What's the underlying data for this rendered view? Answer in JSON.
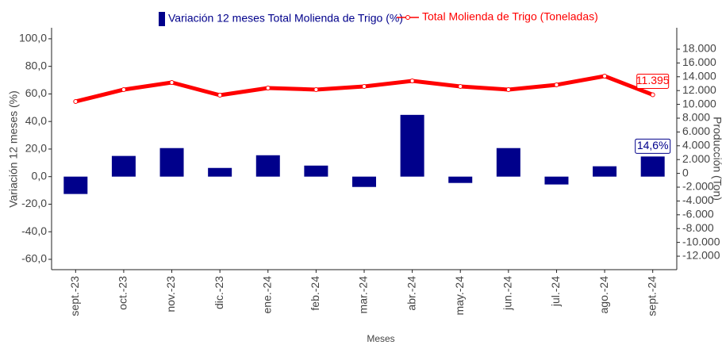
{
  "chart_data": {
    "type": "bar_line",
    "x_label": "Meses",
    "y_label": "Variación 12 meses (%)",
    "y2_label": "Producción (Ton)",
    "categories": [
      "sept.-23",
      "oct.-23",
      "nov.-23",
      "dic.-23",
      "ene.-24",
      "feb.-24",
      "mar.-24",
      "abr.-24",
      "may.-24",
      "jun.-24",
      "jul.-24",
      "ago.-24",
      "sept.-24"
    ],
    "series": [
      {
        "name": "Variación 12 meses Total Molienda de Trigo (%)",
        "type": "bar",
        "color": "#00008b",
        "values": [
          -12.6,
          15,
          20.7,
          6.3,
          15.5,
          8,
          -7.5,
          44.8,
          -4.6,
          20.7,
          -5.7,
          7.5,
          14.6
        ],
        "value_labels": [
          null,
          null,
          null,
          null,
          null,
          null,
          null,
          null,
          null,
          null,
          null,
          null,
          "14,6%"
        ]
      },
      {
        "name": "Total Molienda de Trigo (Toneladas)",
        "type": "line",
        "axis": "y2",
        "color": "#ff0000",
        "values": [
          10414,
          12140,
          13170,
          11330,
          12370,
          12140,
          12600,
          13400,
          12600,
          12140,
          12830,
          14090,
          11395
        ],
        "value_labels": [
          null,
          null,
          null,
          null,
          null,
          null,
          null,
          null,
          null,
          null,
          null,
          null,
          "11.395"
        ]
      }
    ],
    "ylim": [
      -67.5,
      108
    ],
    "yticks": [
      {
        "value": -60,
        "label": "-60,0"
      },
      {
        "value": -40,
        "label": "-40,0"
      },
      {
        "value": -20,
        "label": "-20,0"
      },
      {
        "value": 0,
        "label": "0,0"
      },
      {
        "value": 20,
        "label": "20,0"
      },
      {
        "value": 40,
        "label": "40,0"
      },
      {
        "value": 60,
        "label": "60,0"
      },
      {
        "value": 80,
        "label": "80,0"
      },
      {
        "value": 100,
        "label": "100,0"
      }
    ],
    "y2lim": [
      -13950,
      21100
    ],
    "y2ticks": [
      {
        "value": -12000,
        "label": "-12.000"
      },
      {
        "value": -10000,
        "label": "-10.000"
      },
      {
        "value": -8000,
        "label": "-8.000"
      },
      {
        "value": -6000,
        "label": "-6.000"
      },
      {
        "value": -4000,
        "label": "-4.000"
      },
      {
        "value": -2000,
        "label": "-2.000"
      },
      0,
      {
        "value": 2000,
        "label": "2.000"
      },
      {
        "value": 4000,
        "label": "4.000"
      },
      {
        "value": 6000,
        "label": "6.000"
      },
      {
        "value": 8000,
        "label": "8.000"
      },
      {
        "value": 10000,
        "label": "10.000"
      },
      {
        "value": 12000,
        "label": "12.000"
      },
      {
        "value": 14000,
        "label": "14.000"
      },
      {
        "value": 16000,
        "label": "16.000"
      },
      {
        "value": 18000,
        "label": "18.000"
      }
    ]
  }
}
